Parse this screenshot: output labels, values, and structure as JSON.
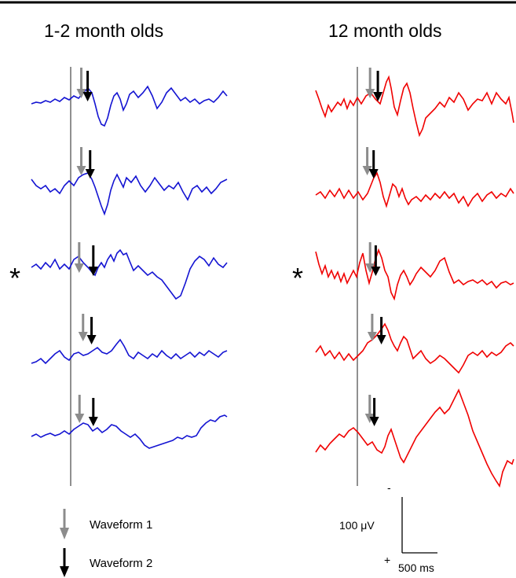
{
  "groups": [
    {
      "title": "1-2 month olds",
      "color": "#1414d2",
      "traces": [
        {
          "marked": false,
          "waveform1_ms": 150,
          "waveform2_ms": 240
        },
        {
          "marked": false,
          "waveform1_ms": 150,
          "waveform2_ms": 275
        },
        {
          "marked": true,
          "waveform1_ms": 120,
          "waveform2_ms": 320
        },
        {
          "marked": false,
          "waveform1_ms": 175,
          "waveform2_ms": 295
        },
        {
          "marked": false,
          "waveform1_ms": 125,
          "waveform2_ms": 320
        }
      ]
    },
    {
      "title": "12 month olds",
      "color": "#f00000",
      "traces": [
        {
          "marked": false,
          "waveform1_ms": 180,
          "waveform2_ms": 290
        },
        {
          "marked": false,
          "waveform1_ms": 140,
          "waveform2_ms": 230
        },
        {
          "marked": true,
          "waveform1_ms": 180,
          "waveform2_ms": 260
        },
        {
          "marked": false,
          "waveform1_ms": 210,
          "waveform2_ms": 340
        },
        {
          "marked": false,
          "waveform1_ms": 175,
          "waveform2_ms": 240
        }
      ]
    }
  ],
  "marker_symbol": "*",
  "legend": [
    {
      "label": "Waveform 1",
      "arrow_color": "#8c8c8c"
    },
    {
      "label": "Waveform 2",
      "arrow_color": "#000000"
    }
  ],
  "scale_bar": {
    "voltage_label": "100 μV",
    "time_label": "500 ms",
    "minus_label": "-",
    "plus_label": "+"
  }
}
